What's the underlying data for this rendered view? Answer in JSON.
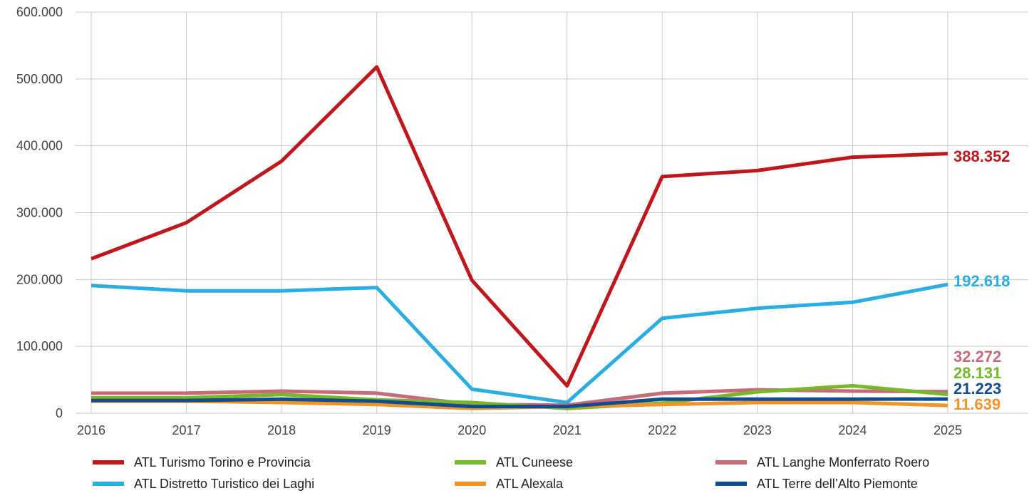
{
  "chart_data": {
    "type": "line",
    "title": "",
    "xlabel": "",
    "ylabel": "",
    "ylim": [
      0,
      600000
    ],
    "yticks": [
      0,
      100000,
      200000,
      300000,
      400000,
      500000,
      600000
    ],
    "ytick_labels": [
      "0",
      "100.000",
      "200.000",
      "300.000",
      "400.000",
      "500.000",
      "600.000"
    ],
    "grid": true,
    "legend_position": "bottom",
    "categories": [
      "2016",
      "2017",
      "2018",
      "2019",
      "2020",
      "2021",
      "2022",
      "2023",
      "2024",
      "2025"
    ],
    "series": [
      {
        "name": "ATL Turismo Torino e Provincia",
        "color": "#c0171c",
        "values": [
          231000,
          285000,
          377000,
          518000,
          199000,
          41000,
          354000,
          363000,
          383000,
          388352
        ],
        "end_label": "388.352"
      },
      {
        "name": "ATL Distretto Turistico dei Laghi",
        "color": "#29aee3",
        "values": [
          191000,
          183000,
          183000,
          188000,
          36000,
          16000,
          142000,
          157000,
          166000,
          192618
        ],
        "end_label": "192.618"
      },
      {
        "name": "ATL Cuneese",
        "color": "#76b82a",
        "values": [
          23000,
          23000,
          28000,
          20000,
          16000,
          7000,
          15000,
          32000,
          41000,
          28131
        ],
        "end_label": "28.131"
      },
      {
        "name": "ATL Alexala",
        "color": "#f39325",
        "values": [
          18000,
          18000,
          16000,
          13000,
          7000,
          10000,
          13000,
          16000,
          16000,
          11639
        ],
        "end_label": "11.639"
      },
      {
        "name": "ATL Langhe Monferrato Roero",
        "color": "#c86a78",
        "values": [
          30000,
          30000,
          33000,
          30000,
          13000,
          12000,
          30000,
          35000,
          33000,
          32272
        ],
        "end_label": "32.272"
      },
      {
        "name": "ATL Terre dell’Alto Piemonte",
        "color": "#0f4d92",
        "values": [
          19000,
          19000,
          21000,
          18000,
          10000,
          10000,
          21000,
          21000,
          21000,
          21223
        ],
        "end_label": "21.223"
      }
    ]
  }
}
